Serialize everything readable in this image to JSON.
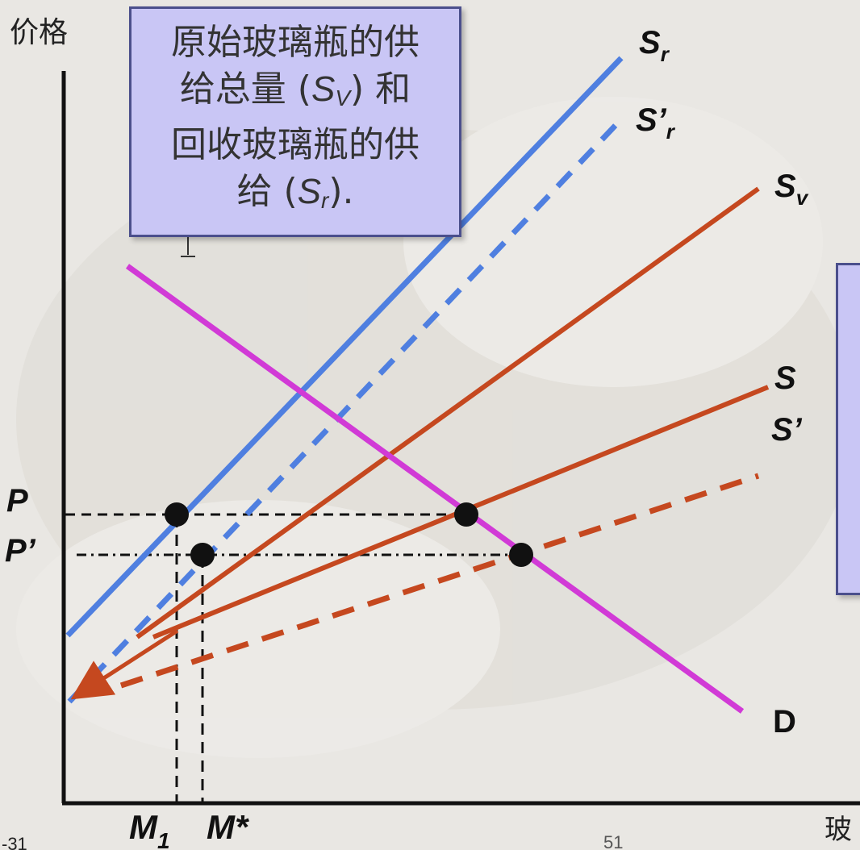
{
  "axes": {
    "y_label": "价格",
    "x_label": "玻"
  },
  "callout": {
    "line1": "原始玻璃瓶的供",
    "line2_pre": "给总量 (",
    "line2_var": "S",
    "line2_sub": "V",
    "line2_post": ") 和",
    "line3": "回收玻璃瓶的供",
    "line4_pre": "给 (",
    "line4_var": "S",
    "line4_sub": "r",
    "line4_post": ")."
  },
  "labels": {
    "sr": "S",
    "sr_sub": "r",
    "sr_prime": "S’",
    "sr_prime_sub": "r",
    "sv": "S",
    "sv_sub": "v",
    "s": "S",
    "s_prime": "S’",
    "d": "D",
    "p": "P",
    "p_prime": "P’",
    "m1": "M",
    "m1_sub": "1",
    "m_star": "M*"
  },
  "footer": {
    "left": "-31",
    "page": "51"
  },
  "colors": {
    "recycled_supply": "#4f7fe0",
    "virgin_and_total_supply": "#c5481f",
    "demand": "#d13ad6",
    "callout_fill": "#c9c6f5"
  },
  "cursor_icon": "text-cursor-icon"
}
